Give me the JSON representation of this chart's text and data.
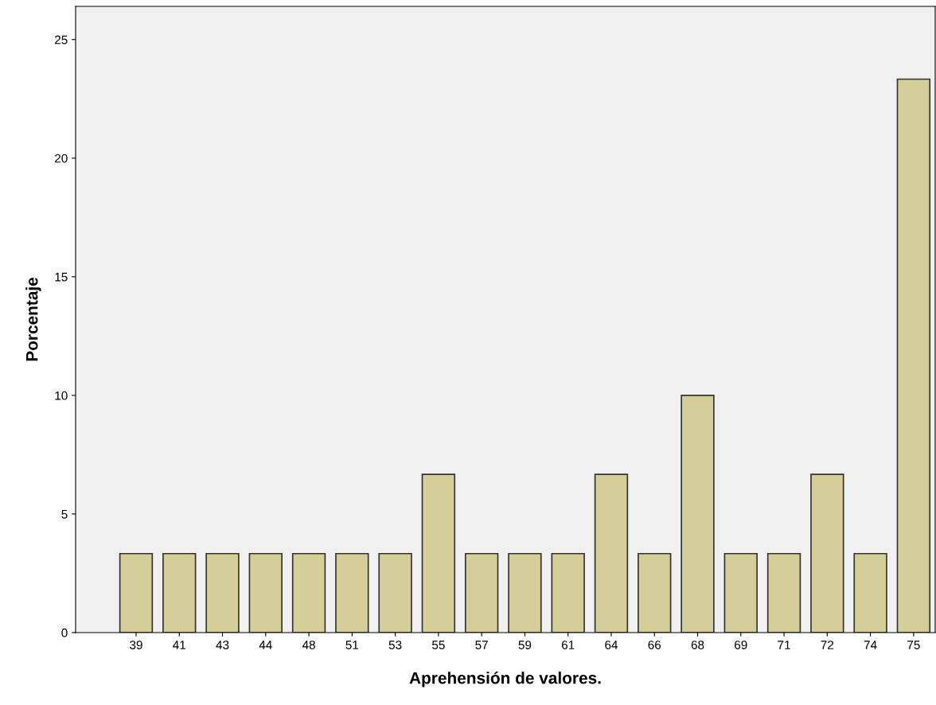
{
  "chart_data": {
    "type": "bar",
    "xlabel": "Aprehensión de valores.",
    "ylabel": "Porcentaje",
    "categories": [
      "39",
      "41",
      "43",
      "44",
      "48",
      "51",
      "53",
      "55",
      "57",
      "59",
      "61",
      "64",
      "66",
      "68",
      "69",
      "71",
      "72",
      "74",
      "75"
    ],
    "values": [
      3.33,
      3.33,
      3.33,
      3.33,
      3.33,
      3.33,
      3.33,
      6.67,
      3.33,
      3.33,
      3.33,
      6.67,
      3.33,
      10,
      3.33,
      3.33,
      6.67,
      3.33,
      23.33
    ],
    "color": "#d4cf98",
    "ylim": [
      0,
      26.4
    ],
    "yticks": [
      0,
      5,
      10,
      15,
      20,
      25
    ],
    "grid": false
  }
}
